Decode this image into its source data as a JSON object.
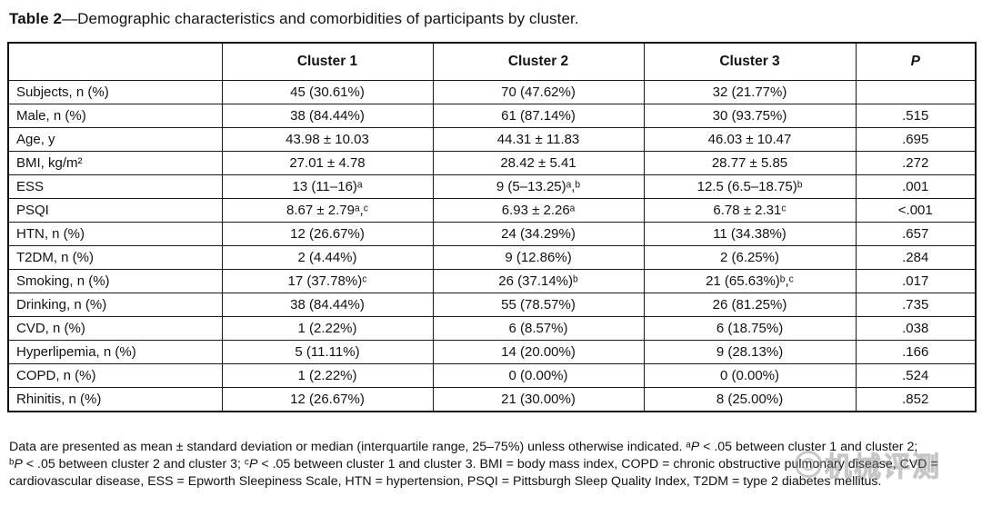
{
  "title": {
    "segments": [
      {
        "text": "Table 2",
        "style": "bold"
      },
      {
        "text": "—Demographic characteristics and comorbidities of participants by cluster."
      }
    ]
  },
  "table": {
    "columns": [
      "",
      "Cluster 1",
      "Cluster 2",
      "Cluster 3",
      "P"
    ],
    "rows": [
      {
        "label": "Subjects, n (%)",
        "c1": "45 (30.61%)",
        "c2": "70 (47.62%)",
        "c3": "32 (21.77%)",
        "p": ""
      },
      {
        "label": "Male, n (%)",
        "c1": "38 (84.44%)",
        "c2": "61 (87.14%)",
        "c3": "30 (93.75%)",
        "p": ".515"
      },
      {
        "label": "Age, y",
        "c1": "43.98 ± 10.03",
        "c2": "44.31 ± 11.83",
        "c3": "46.03 ± 10.47",
        "p": ".695"
      },
      {
        "label": "BMI, kg/m²",
        "c1": "27.01 ± 4.78",
        "c2": "28.42 ± 5.41",
        "c3": "28.77 ± 5.85",
        "p": ".272"
      },
      {
        "label": "ESS",
        "c1": "13 (11–16)ᵃ",
        "c2": "9 (5–13.25)ᵃ,ᵇ",
        "c3": "12.5 (6.5–18.75)ᵇ",
        "p": ".001"
      },
      {
        "label": "PSQI",
        "c1": "8.67 ± 2.79ᵃ,ᶜ",
        "c2": "6.93 ± 2.26ᵃ",
        "c3": "6.78 ± 2.31ᶜ",
        "p": "<.001"
      },
      {
        "label": "HTN, n (%)",
        "c1": "12 (26.67%)",
        "c2": "24 (34.29%)",
        "c3": "11 (34.38%)",
        "p": ".657"
      },
      {
        "label": "T2DM, n (%)",
        "c1": "2 (4.44%)",
        "c2": "9 (12.86%)",
        "c3": "2 (6.25%)",
        "p": ".284"
      },
      {
        "label": "Smoking, n (%)",
        "c1": "17 (37.78%)ᶜ",
        "c2": "26 (37.14%)ᵇ",
        "c3": "21 (65.63%)ᵇ,ᶜ",
        "p": ".017"
      },
      {
        "label": "Drinking, n (%)",
        "c1": "38 (84.44%)",
        "c2": "55 (78.57%)",
        "c3": "26 (81.25%)",
        "p": ".735"
      },
      {
        "label": "CVD, n (%)",
        "c1": "1 (2.22%)",
        "c2": "6 (8.57%)",
        "c3": "6 (18.75%)",
        "p": ".038"
      },
      {
        "label": "Hyperlipemia, n (%)",
        "c1": "5 (11.11%)",
        "c2": "14 (20.00%)",
        "c3": "9 (28.13%)",
        "p": ".166"
      },
      {
        "label": "COPD, n (%)",
        "c1": "1 (2.22%)",
        "c2": "0 (0.00%)",
        "c3": "0 (0.00%)",
        "p": ".524"
      },
      {
        "label": "Rhinitis, n (%)",
        "c1": "12 (26.67%)",
        "c2": "21 (30.00%)",
        "c3": "8 (25.00%)",
        "p": ".852"
      }
    ]
  },
  "footnote": {
    "segments": [
      {
        "text": "Data are presented as mean ± standard deviation or median (interquartile range, 25–75%) unless otherwise indicated. ᵃ"
      },
      {
        "text": "P",
        "style": "italic"
      },
      {
        "text": " < .05 between cluster 1 and cluster 2;\nᵇ"
      },
      {
        "text": "P",
        "style": "italic"
      },
      {
        "text": " < .05 between cluster 2 and cluster 3; ᶜ"
      },
      {
        "text": "P",
        "style": "italic"
      },
      {
        "text": " < .05 between cluster 1 and cluster 3. BMI = body mass index, COPD = chronic obstructive pulmonary disease, CVD =\ncardiovascular disease, ESS = Epworth Sleepiness Scale, HTN = hypertension, PSQI = Pittsburgh Sleep Quality Index, T2DM = type 2 diabetes mellitus."
      }
    ]
  },
  "watermark": {
    "text": "机械评测",
    "icon": "circle-logo-icon"
  }
}
